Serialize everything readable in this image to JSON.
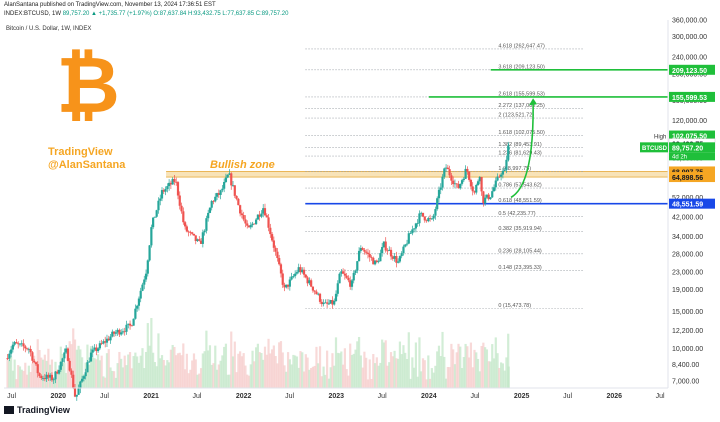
{
  "header": {
    "publisher_line": "AlanSantana published on TradingView.com, November 13, 2024 17:36:51 EST",
    "ohlc_line_prefix": "INDEX:BTCUSD, 1W",
    "ohlc_values": "89,757.20 ▲ +1,735.77 (+1.97%) O:87,637.84 H:93,432.75 L:77,637.85 C:89,757.20"
  },
  "symbol_label": "Bitcoin / U.S. Dollar, 1W, INDEX",
  "watermark": {
    "line1": "TradingView",
    "line2": "@AlanSantana"
  },
  "zone_label": "Bullish zone",
  "footer": {
    "brand": "TradingView"
  },
  "colors": {
    "up": "#26a69a",
    "down": "#ef5350",
    "bitcoin_orange": "#f7931a",
    "zone_fill": "#f6d9a0",
    "green_line": "#1fbf3a",
    "blue_line": "#1848e8",
    "projection_arrow": "#1fbf3a"
  },
  "chart_data": {
    "type": "candlestick",
    "title": "Bitcoin / U.S. Dollar, 1W, INDEX",
    "y_scale": "log",
    "ylim": [
      6500,
      360000
    ],
    "xlim": [
      "2019-06",
      "2026-08"
    ],
    "x_tick_labels": [
      "Jul",
      "2020",
      "Jul",
      "2021",
      "Jul",
      "2022",
      "Jul",
      "2023",
      "Jul",
      "2024",
      "Jul",
      "2025",
      "Jul",
      "2026",
      "Jul"
    ],
    "y_tick_labels": [
      "360,000.00",
      "300,000.00",
      "240,000.00",
      "200,000.00",
      "150,000.00",
      "120,000.00",
      "100,000.00",
      "80,000.00",
      "52,000.00",
      "42,000.00",
      "34,000.00",
      "28,000.00",
      "23,000.00",
      "19,000.00",
      "15,000.00",
      "12,200.00",
      "10,000.00",
      "8,400.00",
      "7,000.00"
    ],
    "y_tick_values": [
      360000,
      300000,
      240000,
      200000,
      150000,
      120000,
      100000,
      80000,
      52000,
      42000,
      34000,
      28000,
      23000,
      19000,
      15000,
      12200,
      10000,
      8400,
      7000
    ],
    "price_path": [
      [
        "2019-06-15",
        9000
      ],
      [
        "2019-07-15",
        10500
      ],
      [
        "2019-09-15",
        10000
      ],
      [
        "2019-10-25",
        7400
      ],
      [
        "2019-12-20",
        7200
      ],
      [
        "2020-02-10",
        9800
      ],
      [
        "2020-03-16",
        5800
      ],
      [
        "2020-05-15",
        9400
      ],
      [
        "2020-08-15",
        11800
      ],
      [
        "2020-10-20",
        12800
      ],
      [
        "2020-12-20",
        23500
      ],
      [
        "2021-01-10",
        38000
      ],
      [
        "2021-02-20",
        55000
      ],
      [
        "2021-04-14",
        63000
      ],
      [
        "2021-05-20",
        37000
      ],
      [
        "2021-07-20",
        31000
      ],
      [
        "2021-09-05",
        50000
      ],
      [
        "2021-10-10",
        55000
      ],
      [
        "2021-11-10",
        67000
      ],
      [
        "2021-12-20",
        47000
      ],
      [
        "2022-01-25",
        36000
      ],
      [
        "2022-03-28",
        47000
      ],
      [
        "2022-05-12",
        29000
      ],
      [
        "2022-06-18",
        19000
      ],
      [
        "2022-08-14",
        24000
      ],
      [
        "2022-10-10",
        19200
      ],
      [
        "2022-11-21",
        16000
      ],
      [
        "2022-12-31",
        16500
      ],
      [
        "2023-01-25",
        23000
      ],
      [
        "2023-03-10",
        20000
      ],
      [
        "2023-04-14",
        30500
      ],
      [
        "2023-06-15",
        25000
      ],
      [
        "2023-07-15",
        31000
      ],
      [
        "2023-09-10",
        25500
      ],
      [
        "2023-10-24",
        34500
      ],
      [
        "2023-12-05",
        43000
      ],
      [
        "2024-01-22",
        40000
      ],
      [
        "2024-02-28",
        62000
      ],
      [
        "2024-03-14",
        73000
      ],
      [
        "2024-05-01",
        57000
      ],
      [
        "2024-06-05",
        71000
      ],
      [
        "2024-07-05",
        54000
      ],
      [
        "2024-07-29",
        69000
      ],
      [
        "2024-08-05",
        50000
      ],
      [
        "2024-09-06",
        53000
      ],
      [
        "2024-10-20",
        69000
      ],
      [
        "2024-11-04",
        68000
      ],
      [
        "2024-11-13",
        89757.2
      ]
    ],
    "last_candle": {
      "open": 87637.84,
      "high": 93432.75,
      "low": 77637.85,
      "close": 89757.2
    },
    "fib_levels": [
      {
        "label": "4.618 (262,647.47)",
        "value": 262647.47
      },
      {
        "label": "3.618 (209,123.50)",
        "value": 209123.5
      },
      {
        "label": "2.618 (155,599.53)",
        "value": 155599.53
      },
      {
        "label": "2.272 (137,080.25)",
        "value": 137080.25
      },
      {
        "label": "2 (123,521.72)",
        "value": 123521.72
      },
      {
        "label": "1.618 (102,075.50)",
        "value": 102075.5
      },
      {
        "label": "1.382 (89,453.91)",
        "value": 89453.91
      },
      {
        "label": "1.236 (81,629.43)",
        "value": 81629.43
      },
      {
        "label": "1 (68,997.75)",
        "value": 68997.75
      },
      {
        "label": "0.786 (57,543.62)",
        "value": 57543.62
      },
      {
        "label": "0.618 (48,551.59)",
        "value": 48551.59
      },
      {
        "label": "0.5 (42,235.77)",
        "value": 42235.77
      },
      {
        "label": "0.382 (35,919.94)",
        "value": 35919.94
      },
      {
        "label": "0.236 (28,105.44)",
        "value": 28105.44
      },
      {
        "label": "0.148 (23,395.33)",
        "value": 23395.33
      },
      {
        "label": "0 (15,473.78)",
        "value": 15473.78
      }
    ],
    "price_tags": [
      {
        "text": "209,123.50",
        "value": 209123.5,
        "color": "#1fbf3a",
        "text_color": "#ffffff"
      },
      {
        "text": "155,599.53",
        "value": 155599.53,
        "color": "#1fbf3a",
        "text_color": "#ffffff"
      },
      {
        "text": "102,075.50",
        "value": 102075.5,
        "color": "#1fbf3a",
        "text_color": "#ffffff"
      },
      {
        "text": "93,432.75",
        "value": 93432.75,
        "color": "#ffffff",
        "text_color": "#131722"
      },
      {
        "text": "89,757.20",
        "value": 89757.2,
        "color": "#1fbf3a",
        "text_color": "#ffffff"
      },
      {
        "text": "68,997.75",
        "value": 68997.75,
        "color": "#f5a623",
        "text_color": "#131722"
      },
      {
        "text": "64,898.56",
        "value": 64898.56,
        "color": "#f5a623",
        "text_color": "#131722"
      },
      {
        "text": "48,551.59",
        "value": 48551.59,
        "color": "#1848e8",
        "text_color": "#ffffff"
      }
    ],
    "high_label": "High",
    "symbol_tag": "BTCUSD",
    "countdown": "4d 2h",
    "bullish_zone": {
      "low": 64898.56,
      "high": 68997.75,
      "from": "2021-03"
    },
    "horizontal_lines": [
      {
        "value": 209123.5,
        "color": "#1fbf3a",
        "from": "2024-09"
      },
      {
        "value": 155599.53,
        "color": "#1fbf3a",
        "from": "2024-01"
      },
      {
        "value": 48551.59,
        "color": "#1848e8",
        "from": "2022-09"
      }
    ]
  }
}
